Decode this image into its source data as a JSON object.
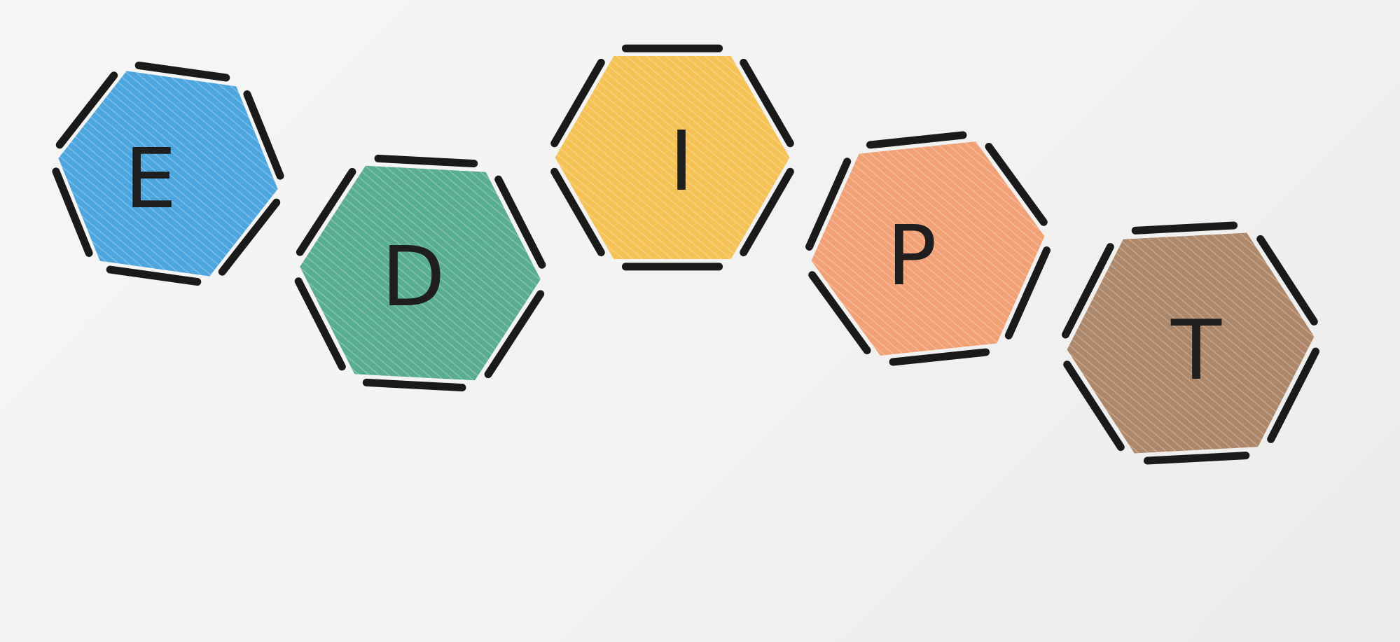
{
  "tiles": [
    {
      "letter": "E",
      "color": "#1f8fd8"
    },
    {
      "letter": "D",
      "color": "#2e9a73"
    },
    {
      "letter": "I",
      "color": "#f5b32a"
    },
    {
      "letter": "P",
      "color": "#f28a55"
    },
    {
      "letter": "T",
      "color": "#9b6a45"
    }
  ]
}
